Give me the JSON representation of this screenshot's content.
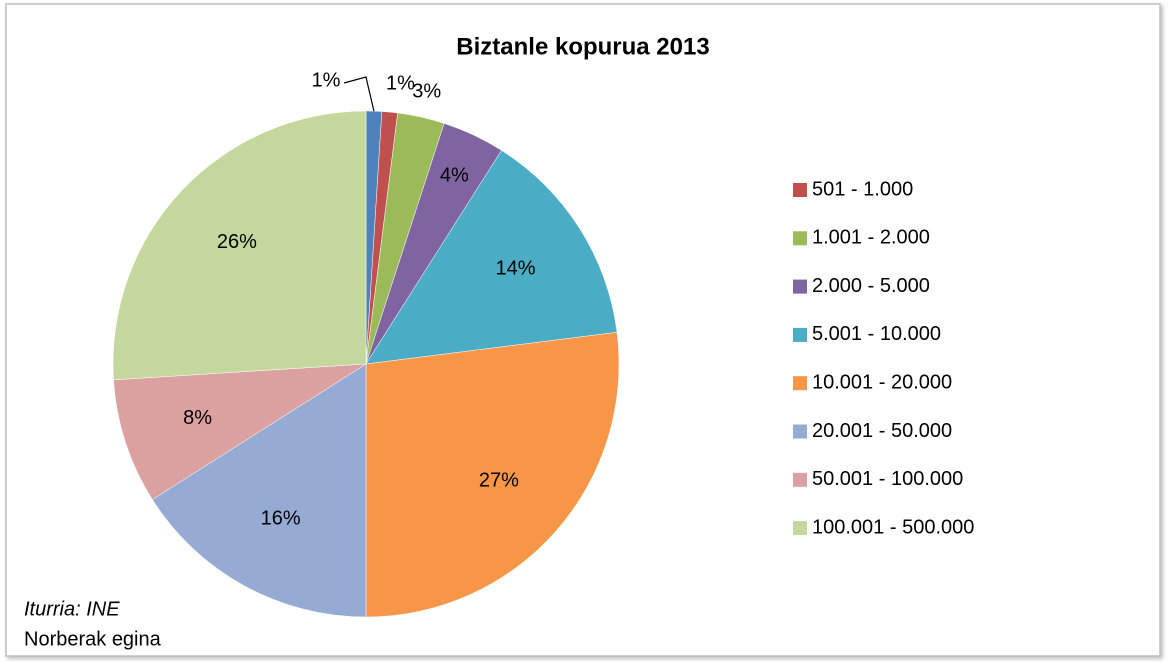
{
  "chart_data": {
    "type": "pie",
    "title": "Biztanle kopurua 2013",
    "categories": [
      null,
      "501 - 1.000",
      "1.001 - 2.000",
      "2.000 - 5.000",
      "5.001 - 10.000",
      "10.001 - 20.000",
      "20.001 - 50.000",
      "50.001 - 100.000",
      "100.001 - 500.000"
    ],
    "values": [
      1,
      1,
      3,
      4,
      14,
      27,
      16,
      8,
      26
    ],
    "value_labels": [
      "1%",
      "1%",
      "3%",
      "4%",
      "14%",
      "27%",
      "16%",
      "8%",
      "26%"
    ],
    "colors": [
      "#4f81bd",
      "#c0504d",
      "#9bbb59",
      "#8064a2",
      "#4bacc6",
      "#f79646",
      "#95abd4",
      "#dba0a0",
      "#c4d79c"
    ],
    "legend": "right",
    "source": "Iturria: INE",
    "note": "Norberak egina"
  }
}
